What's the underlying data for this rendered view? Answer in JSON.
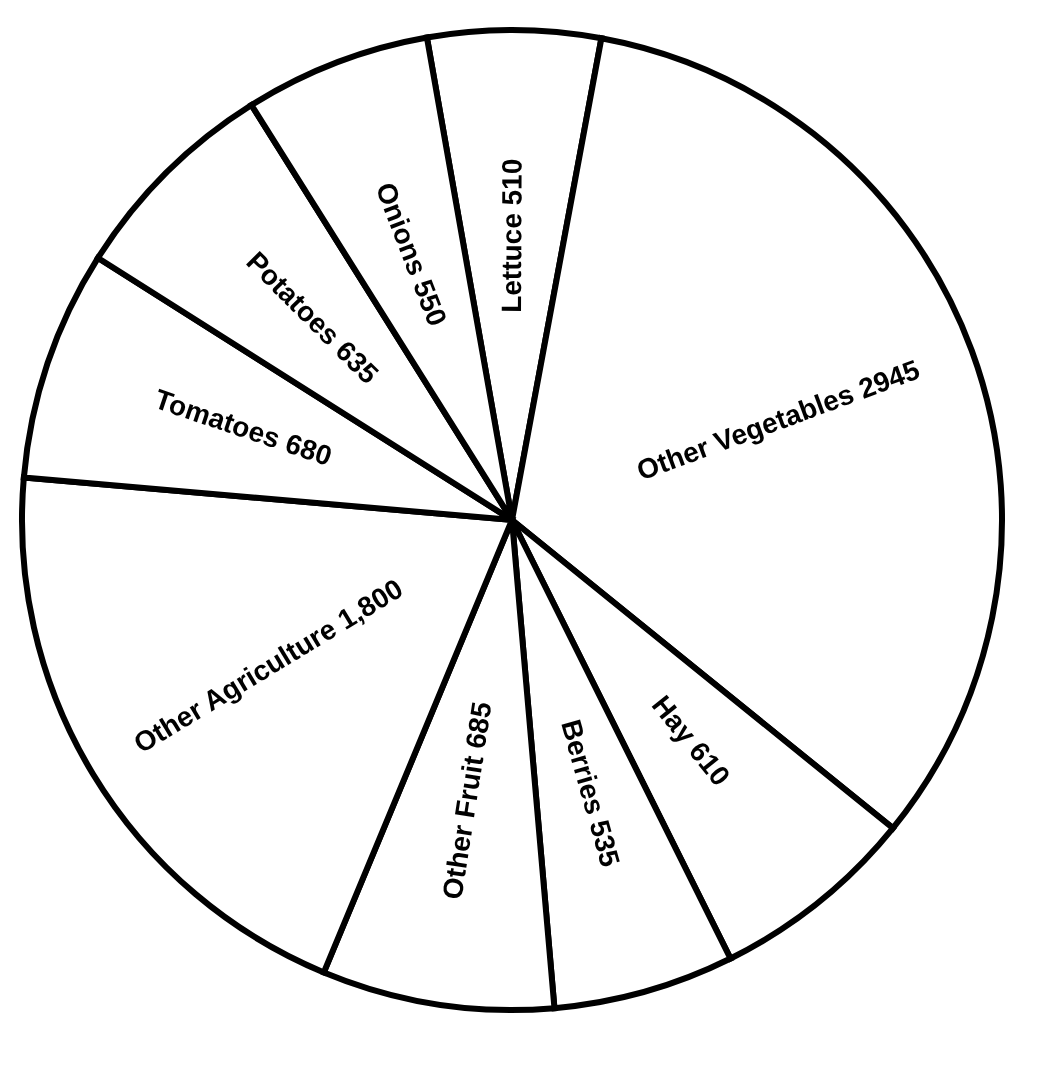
{
  "chart_data": {
    "type": "pie",
    "categories": [
      "Lettuce",
      "Other Vegetables",
      "Hay",
      "Berries",
      "Other Fruit",
      "Other Agriculture",
      "Tomatoes",
      "Potatoes",
      "Onions"
    ],
    "values": [
      510,
      2945,
      610,
      535,
      685,
      1800,
      680,
      635,
      550
    ],
    "value_labels": [
      "510",
      "2945",
      "610",
      "535",
      "685",
      "1,800",
      "680",
      "635",
      "550"
    ],
    "colors": [
      "#ffffff",
      "#ffffff",
      "#ffffff",
      "#ffffff",
      "#ffffff",
      "#ffffff",
      "#ffffff",
      "#ffffff",
      "#ffffff"
    ],
    "legend": false
  }
}
